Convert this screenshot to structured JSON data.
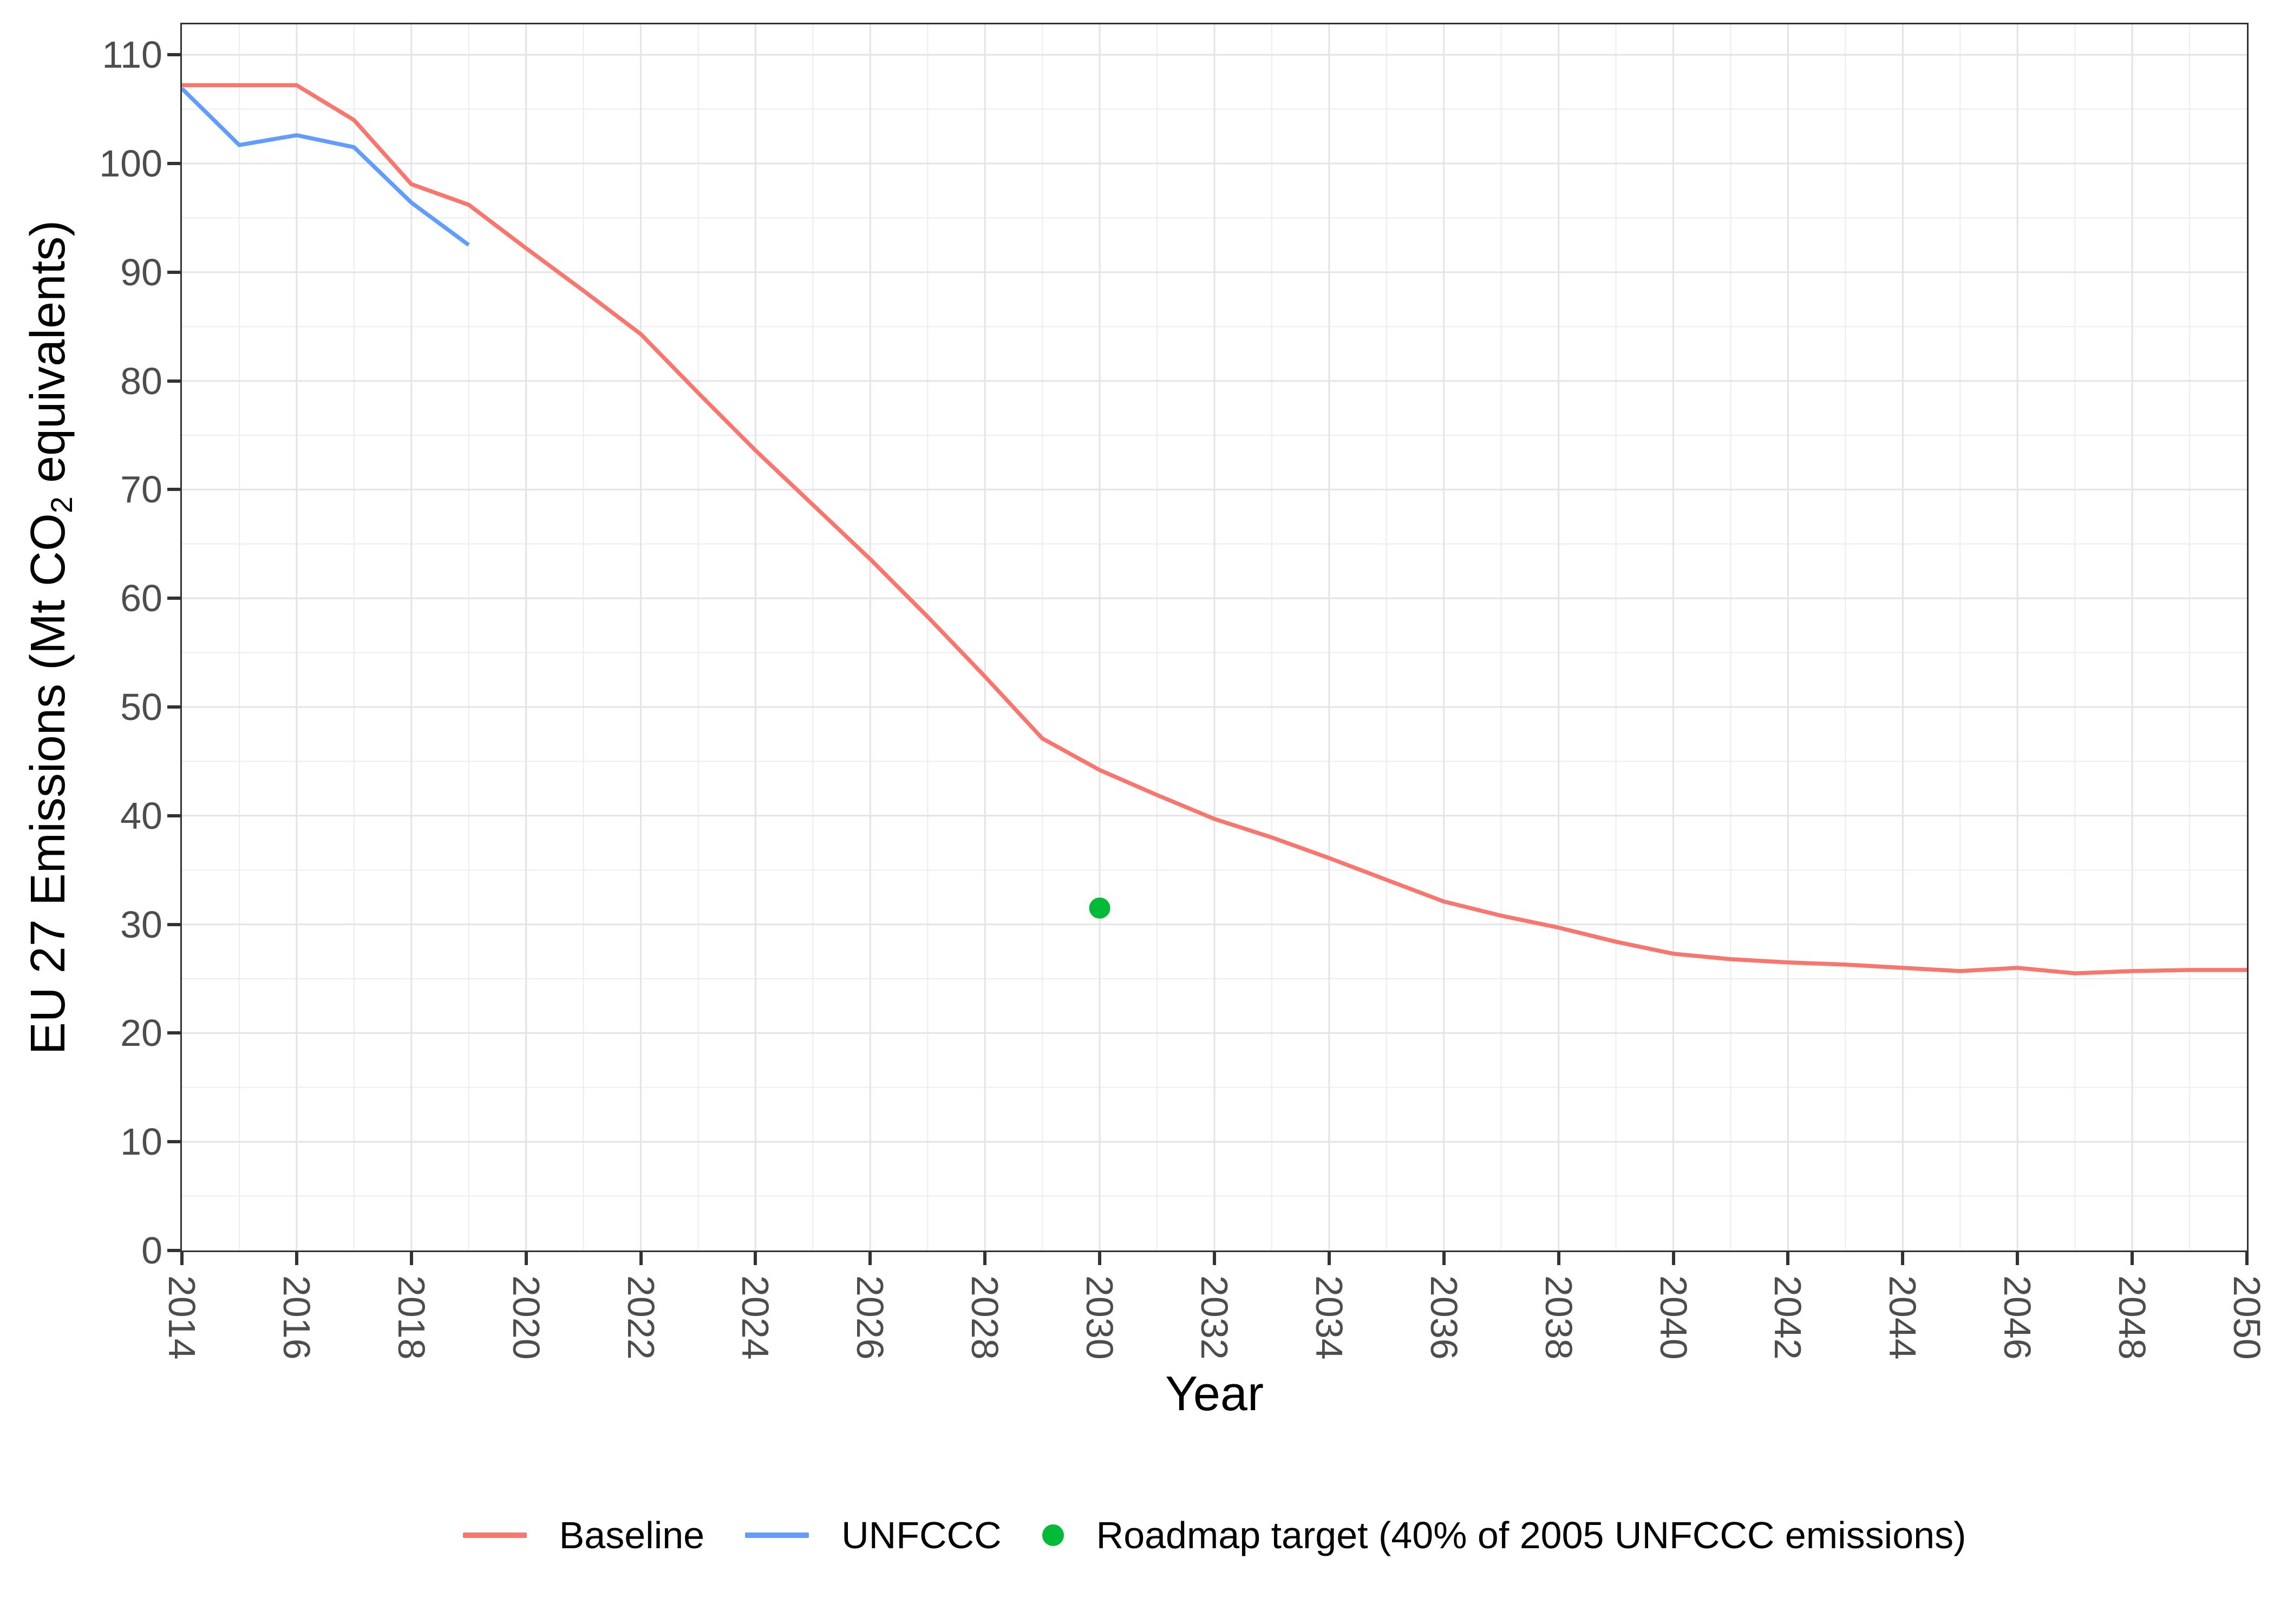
{
  "figure": {
    "background": "#ffffff"
  },
  "x_axis": {
    "title": "Year",
    "tick_labels": [
      "2014",
      "2016",
      "2018",
      "2020",
      "2022",
      "2024",
      "2026",
      "2028",
      "2030",
      "2032",
      "2034",
      "2036",
      "2038",
      "2040",
      "2042",
      "2044",
      "2046",
      "2048",
      "2050"
    ],
    "tick_values": [
      2014,
      2016,
      2018,
      2020,
      2022,
      2024,
      2026,
      2028,
      2030,
      2032,
      2034,
      2036,
      2038,
      2040,
      2042,
      2044,
      2046,
      2048,
      2050
    ],
    "text_color": "#4d4d4d"
  },
  "y_axis": {
    "title_prefix": "EU 27 Emissions (Mt CO",
    "title_subscript": "2",
    "title_suffix": " equivalents)",
    "tick_labels": [
      "0",
      "10",
      "20",
      "30",
      "40",
      "50",
      "60",
      "70",
      "80",
      "90",
      "100",
      "110"
    ],
    "tick_values": [
      0,
      10,
      20,
      30,
      40,
      50,
      60,
      70,
      80,
      90,
      100,
      110
    ],
    "text_color": "#4d4d4d"
  },
  "panel_style": {
    "border_color": "#333333",
    "grid_major_color": "#e4e4e4",
    "grid_minor_color": "#ededed",
    "tick_color": "#333333"
  },
  "legend": {
    "items": [
      {
        "label": "Baseline",
        "glyph": "line",
        "color": "#F8766D"
      },
      {
        "label": "UNFCCC",
        "glyph": "line",
        "color": "#619CFF"
      },
      {
        "label": "Roadmap target (40% of 2005 UNFCCC emissions)",
        "glyph": "point",
        "color": "#00BA38"
      }
    ]
  },
  "chart_data": {
    "type": "line",
    "title": "",
    "xlabel": "Year",
    "ylabel": "EU 27 Emissions (Mt CO2 equivalents)",
    "xlim": [
      2014,
      2050
    ],
    "ylim": [
      0,
      112.8
    ],
    "x_major_ticks_step": 2,
    "y_major_ticks_step": 10,
    "grid": "major+minor",
    "legend_position": "bottom",
    "series": [
      {
        "name": "Baseline",
        "color": "#F8766D",
        "x": [
          2014,
          2015,
          2016,
          2017,
          2018,
          2019,
          2020,
          2021,
          2022,
          2023,
          2024,
          2025,
          2026,
          2027,
          2028,
          2029,
          2030,
          2031,
          2032,
          2033,
          2034,
          2035,
          2036,
          2037,
          2038,
          2039,
          2040,
          2041,
          2042,
          2043,
          2044,
          2045,
          2046,
          2047,
          2048,
          2049,
          2050
        ],
        "values": [
          107.2,
          107.2,
          107.2,
          104.0,
          98.1,
          96.2,
          92.2,
          88.3,
          84.3,
          78.9,
          73.6,
          68.6,
          63.6,
          58.3,
          52.8,
          47.1,
          44.2,
          41.9,
          39.7,
          38.0,
          36.1,
          34.1,
          32.1,
          30.8,
          29.7,
          28.4,
          27.3,
          26.8,
          26.5,
          26.3,
          26.0,
          25.7,
          26.0,
          25.5,
          25.7,
          25.8,
          25.8
        ]
      },
      {
        "name": "UNFCCC",
        "color": "#619CFF",
        "x": [
          2014,
          2015,
          2016,
          2017,
          2018,
          2019
        ],
        "values": [
          106.9,
          101.7,
          102.6,
          101.5,
          96.4,
          92.5
        ]
      }
    ],
    "points": [
      {
        "name": "Roadmap target (40% of 2005 UNFCCC emissions)",
        "color": "#00BA38",
        "x": 2030,
        "y": 31.5
      }
    ]
  }
}
